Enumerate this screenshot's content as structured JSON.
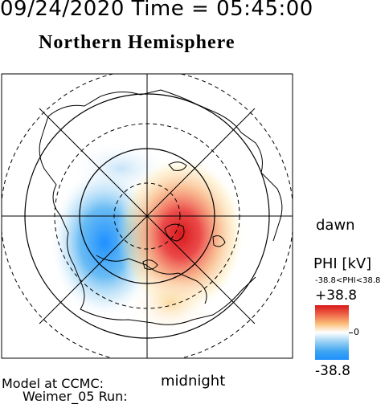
{
  "header": {
    "timestamp": "09/24/2020 Time = 05:45:00",
    "hemisphere": "Northern Hemisphere"
  },
  "map": {
    "dawn_label": "dawn",
    "midnight_label": "midnight",
    "model_line1": "Model at CCMC:",
    "model_line2": "Weimer_05 Run:",
    "positive_color": "#d7191c",
    "negative_color": "#1e90ff"
  },
  "colorbar": {
    "title": "PHI [kV]",
    "range_text": "-38.8<PHI<38.8",
    "max_label": "+38.8",
    "zero_label": "0",
    "min_label": "-38.8"
  }
}
